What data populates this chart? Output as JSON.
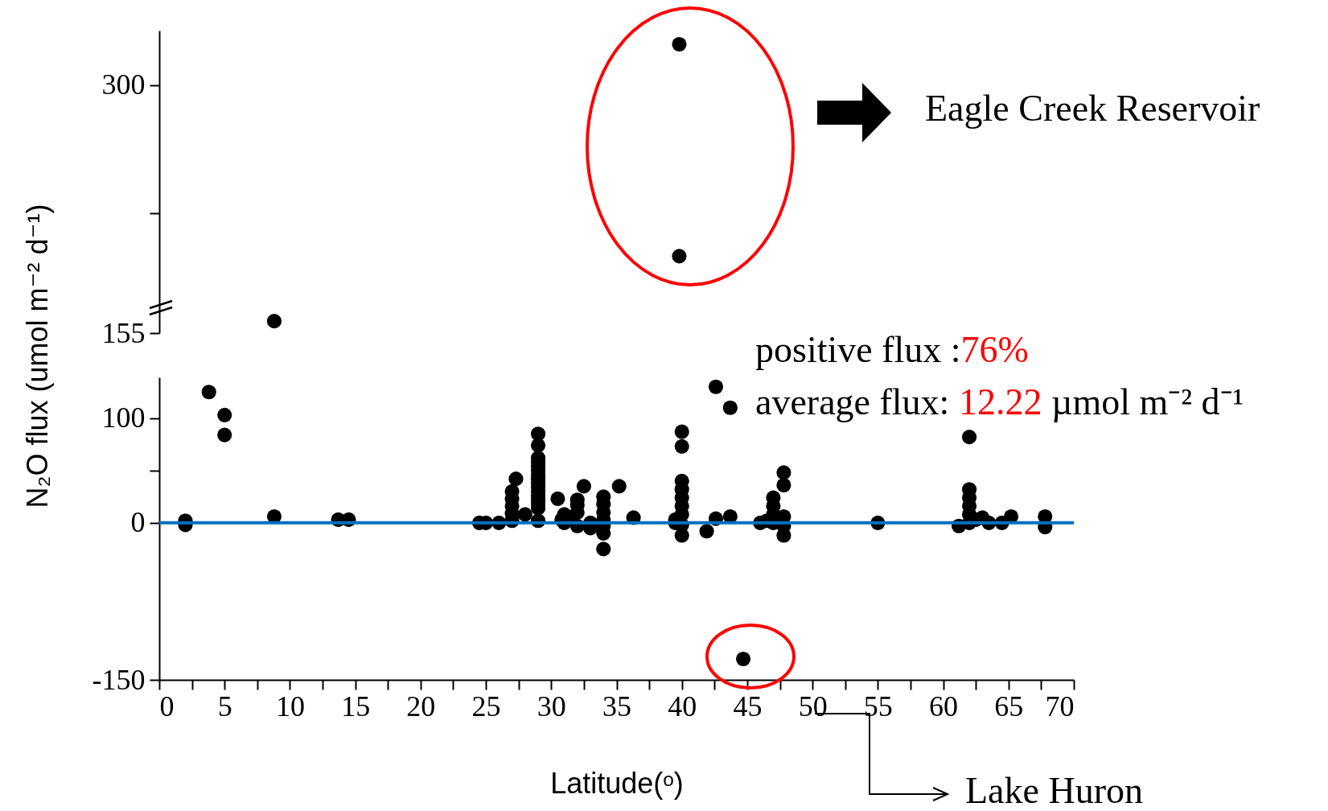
{
  "chart_data": [
    {
      "type": "scatter",
      "color": "#000000",
      "marker": "circle",
      "tick_labels": "y",
      "xlim": [
        0,
        70
      ],
      "ylim": [
        155,
        332
      ],
      "yticks": [
        155,
        {
          "value": 225,
          "label": null
        },
        300
      ],
      "x": [
        8.8,
        39.8,
        39.8
      ],
      "values": [
        162,
        324,
        200
      ],
      "annotations": [
        "Eagle Creek Reservoir",
        "positive flux :76%",
        "average flux: 12.22 µmol m⁻² d⁻¹"
      ]
    },
    {
      "type": "scatter",
      "color": "#000000",
      "marker": "circle",
      "xlim": [
        0,
        70
      ],
      "ylim": [
        -150,
        139
      ],
      "yticks": [
        -150,
        0,
        {
          "value": 50,
          "label": null
        },
        100
      ],
      "ylabel": "N₂O flux (umol m⁻² d⁻¹)",
      "xlabel": "Latitude(ᵒ)",
      "xticks": [
        0,
        {
          "value": 2.5,
          "label": null
        },
        5,
        {
          "value": 7.5,
          "label": null
        },
        10,
        {
          "value": 12.5,
          "label": null
        },
        15,
        {
          "value": 17.5,
          "label": null
        },
        20,
        {
          "value": 22.5,
          "label": null
        },
        25,
        {
          "value": 27.5,
          "label": null
        },
        30,
        {
          "value": 32.5,
          "label": null
        },
        35,
        {
          "value": 37.5,
          "label": null
        },
        40,
        {
          "value": 42.5,
          "label": null
        },
        45,
        {
          "value": 47.5,
          "label": null
        },
        50,
        {
          "value": 52.5,
          "label": null
        },
        55,
        {
          "value": 57.5,
          "label": null
        },
        60,
        {
          "value": 62.5,
          "label": null
        },
        65,
        {
          "value": 67.5,
          "label": null
        },
        70
      ],
      "ref_lines": [
        {
          "axis": "y",
          "value": 0,
          "color": "#0070c0"
        }
      ],
      "x": [
        2,
        2,
        3.8,
        5,
        5,
        8.8,
        13.7,
        14.5,
        24.5,
        25,
        26,
        27,
        27,
        27,
        27,
        27,
        27.3,
        28,
        29,
        29,
        29,
        29,
        29,
        29,
        29,
        29,
        29,
        29,
        29,
        29,
        29,
        29,
        29,
        29,
        30.5,
        30.8,
        31,
        31,
        31.5,
        32,
        32,
        32,
        32,
        32.5,
        33,
        33,
        34,
        34,
        34,
        34,
        34,
        34,
        34,
        35.2,
        36.3,
        39.5,
        39.5,
        40,
        40,
        40,
        40,
        40,
        40,
        40,
        40,
        40,
        41.9,
        42.6,
        42.6,
        43.7,
        43.7,
        44.7,
        46,
        46.5,
        47,
        47,
        47,
        47,
        47.8,
        47.8,
        47.8,
        47.8,
        47.8,
        55,
        61.2,
        62,
        62,
        62,
        62,
        62,
        62,
        62.5,
        63,
        63.5,
        64.5,
        65.2,
        67.8,
        67.8
      ],
      "values": [
        2,
        -2,
        125,
        103,
        84,
        6,
        3,
        3,
        0,
        0,
        0,
        2,
        9,
        16,
        23,
        30,
        42,
        8,
        2,
        14,
        18,
        22,
        26,
        30,
        34,
        38,
        42,
        46,
        50,
        54,
        58,
        62,
        74,
        85,
        23,
        3,
        8,
        0,
        5,
        -3,
        10,
        17,
        22,
        35,
        0,
        -5,
        -25,
        -10,
        -3,
        3,
        10,
        18,
        25,
        35,
        5,
        0,
        3,
        -12,
        -2,
        8,
        16,
        24,
        32,
        40,
        73,
        87,
        -8,
        130,
        4,
        110,
        6,
        -130,
        0,
        2,
        0,
        8,
        16,
        24,
        -12,
        -3,
        6,
        36,
        48,
        0,
        -3,
        0,
        8,
        16,
        24,
        32,
        82,
        3,
        5,
        0,
        0,
        6,
        -4,
        6
      ],
      "annotations": [
        "Lake Huron"
      ]
    }
  ]
}
